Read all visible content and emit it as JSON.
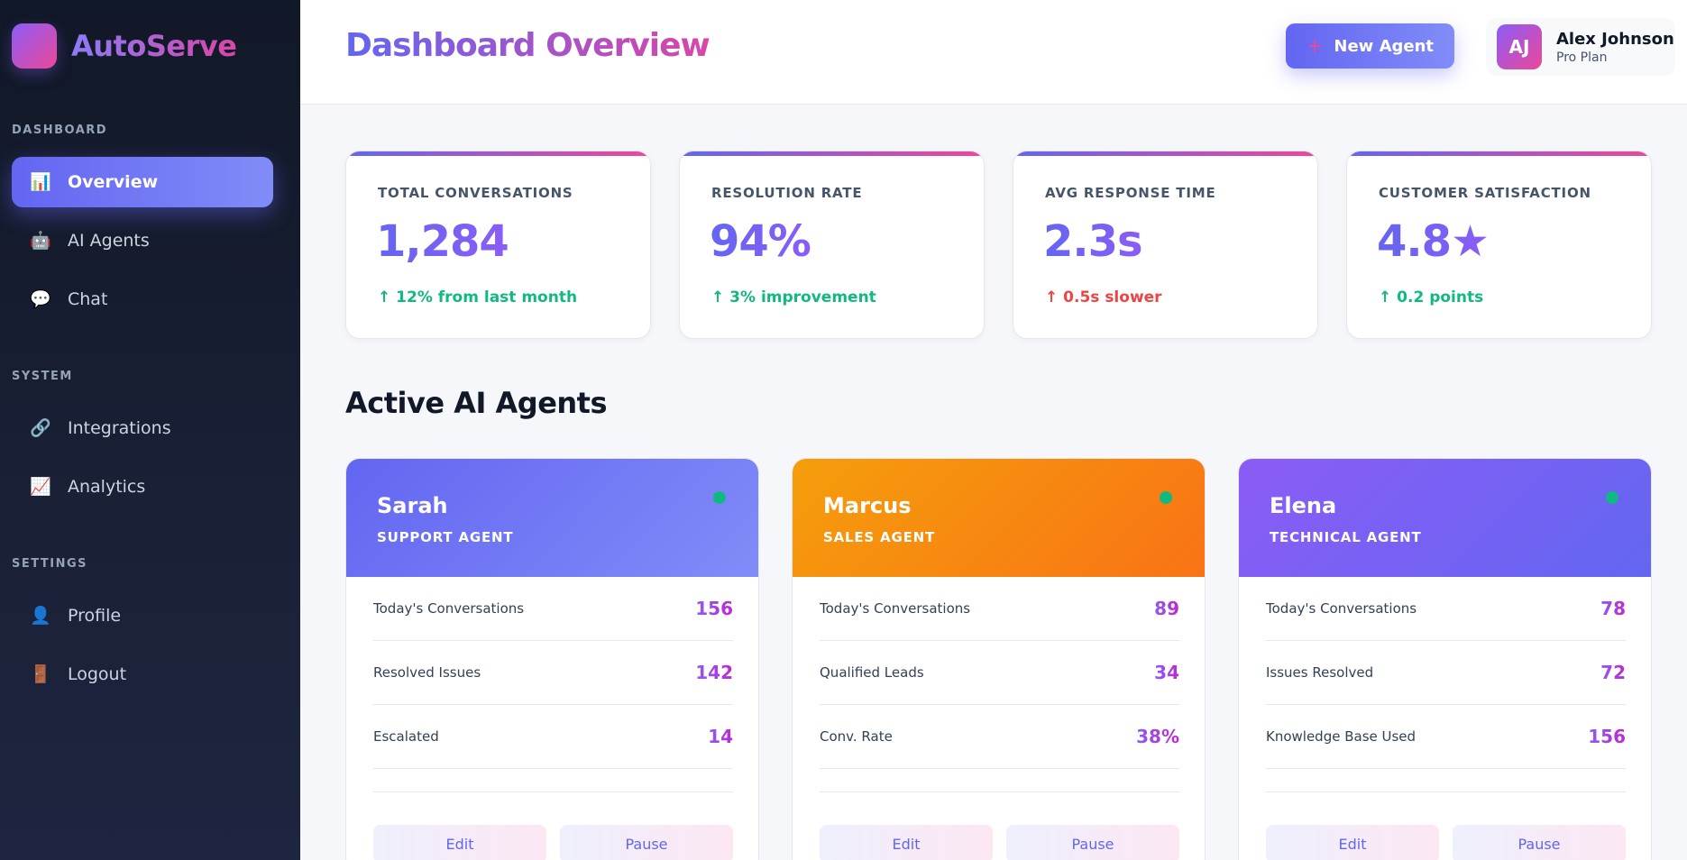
{
  "brand": {
    "name": "AutoServe"
  },
  "sidebar": {
    "sections": [
      {
        "title": "DASHBOARD",
        "items": [
          {
            "label": "Overview",
            "icon": "📊",
            "active": true
          },
          {
            "label": "AI Agents",
            "icon": "🤖"
          },
          {
            "label": "Chat",
            "icon": "💬"
          }
        ]
      },
      {
        "title": "SYSTEM",
        "items": [
          {
            "label": "Integrations",
            "icon": "🔗"
          },
          {
            "label": "Analytics",
            "icon": "📈"
          }
        ]
      },
      {
        "title": "SETTINGS",
        "items": [
          {
            "label": "Profile",
            "icon": "👤"
          },
          {
            "label": "Logout",
            "icon": "🚪"
          }
        ]
      }
    ]
  },
  "header": {
    "title": "Dashboard Overview",
    "new_agent_label": "New Agent",
    "new_agent_icon": "+",
    "user": {
      "initials": "AJ",
      "name": "Alex Johnson",
      "plan": "Pro Plan"
    }
  },
  "stats": [
    {
      "label": "TOTAL CONVERSATIONS",
      "value": "1,284",
      "change": "↑ 12% from last month",
      "trend": "up"
    },
    {
      "label": "RESOLUTION RATE",
      "value": "94%",
      "change": "↑ 3% improvement",
      "trend": "up"
    },
    {
      "label": "AVG RESPONSE TIME",
      "value": "2.3s",
      "change": "↑ 0.5s slower",
      "trend": "down"
    },
    {
      "label": "CUSTOMER SATISFACTION",
      "value": "4.8★",
      "change": "↑ 0.2 points",
      "trend": "up"
    }
  ],
  "agents_section_title": "Active AI Agents",
  "agents": [
    {
      "name": "Sarah",
      "role": "SUPPORT AGENT",
      "status_color": "#10b981",
      "metrics": [
        {
          "label": "Today's Conversations",
          "value": "156"
        },
        {
          "label": "Resolved Issues",
          "value": "142"
        },
        {
          "label": "Escalated",
          "value": "14"
        }
      ],
      "edit_label": "Edit",
      "pause_label": "Pause"
    },
    {
      "name": "Marcus",
      "role": "SALES AGENT",
      "status_color": "#10b981",
      "metrics": [
        {
          "label": "Today's Conversations",
          "value": "89"
        },
        {
          "label": "Qualified Leads",
          "value": "34"
        },
        {
          "label": "Conv. Rate",
          "value": "38%"
        }
      ],
      "edit_label": "Edit",
      "pause_label": "Pause"
    },
    {
      "name": "Elena",
      "role": "TECHNICAL AGENT",
      "status_color": "#10b981",
      "metrics": [
        {
          "label": "Today's Conversations",
          "value": "78"
        },
        {
          "label": "Issues Resolved",
          "value": "72"
        },
        {
          "label": "Knowledge Base Used",
          "value": "156"
        }
      ],
      "edit_label": "Edit",
      "pause_label": "Pause"
    }
  ],
  "colors": {
    "accent": "#6366f1",
    "accent_pink": "#ec4899",
    "positive": "#10b981",
    "negative": "#ef4444"
  }
}
